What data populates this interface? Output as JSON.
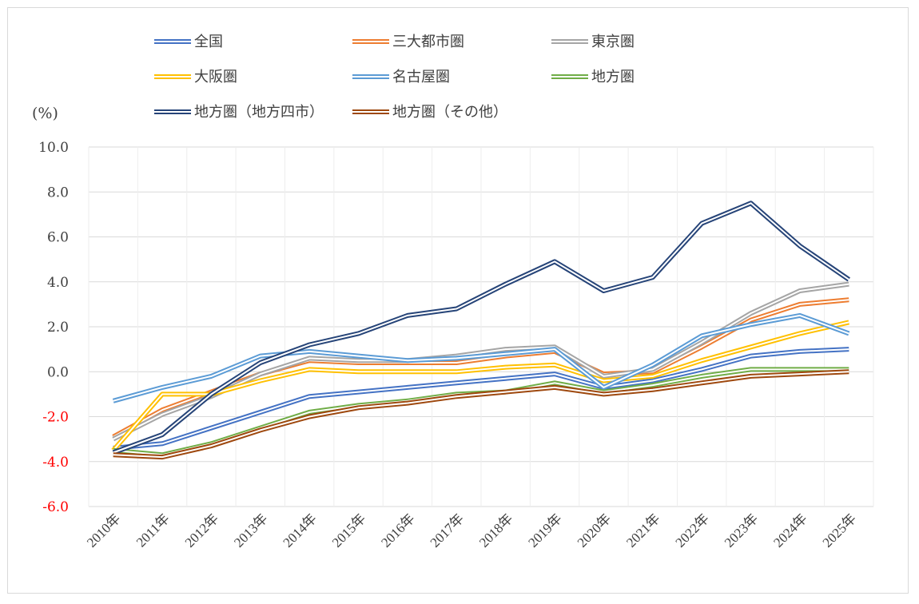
{
  "chart_data": {
    "type": "line",
    "title": "",
    "xlabel": "",
    "ylabel": "(%)",
    "ylim": [
      -6.0,
      10.0
    ],
    "yticks": [
      "10.0",
      "8.0",
      "6.0",
      "4.0",
      "2.0",
      "0.0",
      "-2.0",
      "-4.0",
      "-6.0"
    ],
    "categories": [
      "2010年",
      "2011年",
      "2012年",
      "2013年",
      "2014年",
      "2015年",
      "2016年",
      "2017年",
      "2018年",
      "2019年",
      "2020年",
      "2021年",
      "2022年",
      "2023年",
      "2024年",
      "2025年"
    ],
    "series": [
      {
        "name": "全国",
        "color": "#4472c4",
        "values": [
          -3.4,
          -3.2,
          -2.5,
          -1.8,
          -1.1,
          -0.9,
          -0.7,
          -0.5,
          -0.3,
          -0.1,
          -0.7,
          -0.4,
          0.1,
          0.7,
          0.9,
          1.0
        ]
      },
      {
        "name": "三大都市圏",
        "color": "#ed7d31",
        "values": [
          -2.9,
          -1.7,
          -0.9,
          -0.1,
          0.5,
          0.4,
          0.4,
          0.4,
          0.7,
          0.9,
          -0.1,
          0.0,
          1.1,
          2.3,
          3.0,
          3.2
        ]
      },
      {
        "name": "東京圏",
        "color": "#a5a5a5",
        "values": [
          -3.0,
          -1.9,
          -1.1,
          -0.1,
          0.6,
          0.5,
          0.5,
          0.7,
          1.0,
          1.1,
          -0.2,
          0.1,
          1.3,
          2.6,
          3.6,
          3.9
        ]
      },
      {
        "name": "大阪圏",
        "color": "#ffc000",
        "values": [
          -3.5,
          -1.0,
          -1.0,
          -0.4,
          0.1,
          0.0,
          0.0,
          0.0,
          0.2,
          0.3,
          -0.4,
          -0.2,
          0.5,
          1.1,
          1.7,
          2.2
        ]
      },
      {
        "name": "名古屋圏",
        "color": "#5b9bd5",
        "values": [
          -1.3,
          -0.7,
          -0.2,
          0.7,
          0.9,
          0.7,
          0.5,
          0.6,
          0.8,
          1.0,
          -0.7,
          0.3,
          1.6,
          2.1,
          2.5,
          1.7
        ]
      },
      {
        "name": "地方圏",
        "color": "#70ad47",
        "values": [
          -3.5,
          -3.7,
          -3.2,
          -2.5,
          -1.8,
          -1.5,
          -1.3,
          -1.0,
          -0.9,
          -0.5,
          -0.9,
          -0.6,
          -0.2,
          0.1,
          0.1,
          0.1
        ]
      },
      {
        "name": "地方圏（地方四市）",
        "color": "#264478",
        "values": [
          -3.6,
          -2.8,
          -1.0,
          0.4,
          1.2,
          1.7,
          2.5,
          2.8,
          3.9,
          4.9,
          3.6,
          4.2,
          6.6,
          7.5,
          5.6,
          4.1
        ]
      },
      {
        "name": "地方圏（その他）",
        "color": "#9e480e",
        "values": [
          -3.7,
          -3.8,
          -3.3,
          -2.6,
          -2.0,
          -1.6,
          -1.4,
          -1.1,
          -0.9,
          -0.7,
          -1.0,
          -0.8,
          -0.5,
          -0.2,
          -0.1,
          0.0
        ]
      }
    ],
    "legend": "top",
    "grid": true
  },
  "colors": {
    "grid": "#d9d9d9",
    "negative_tick": "#ff0000",
    "positive_tick": "#404040"
  }
}
